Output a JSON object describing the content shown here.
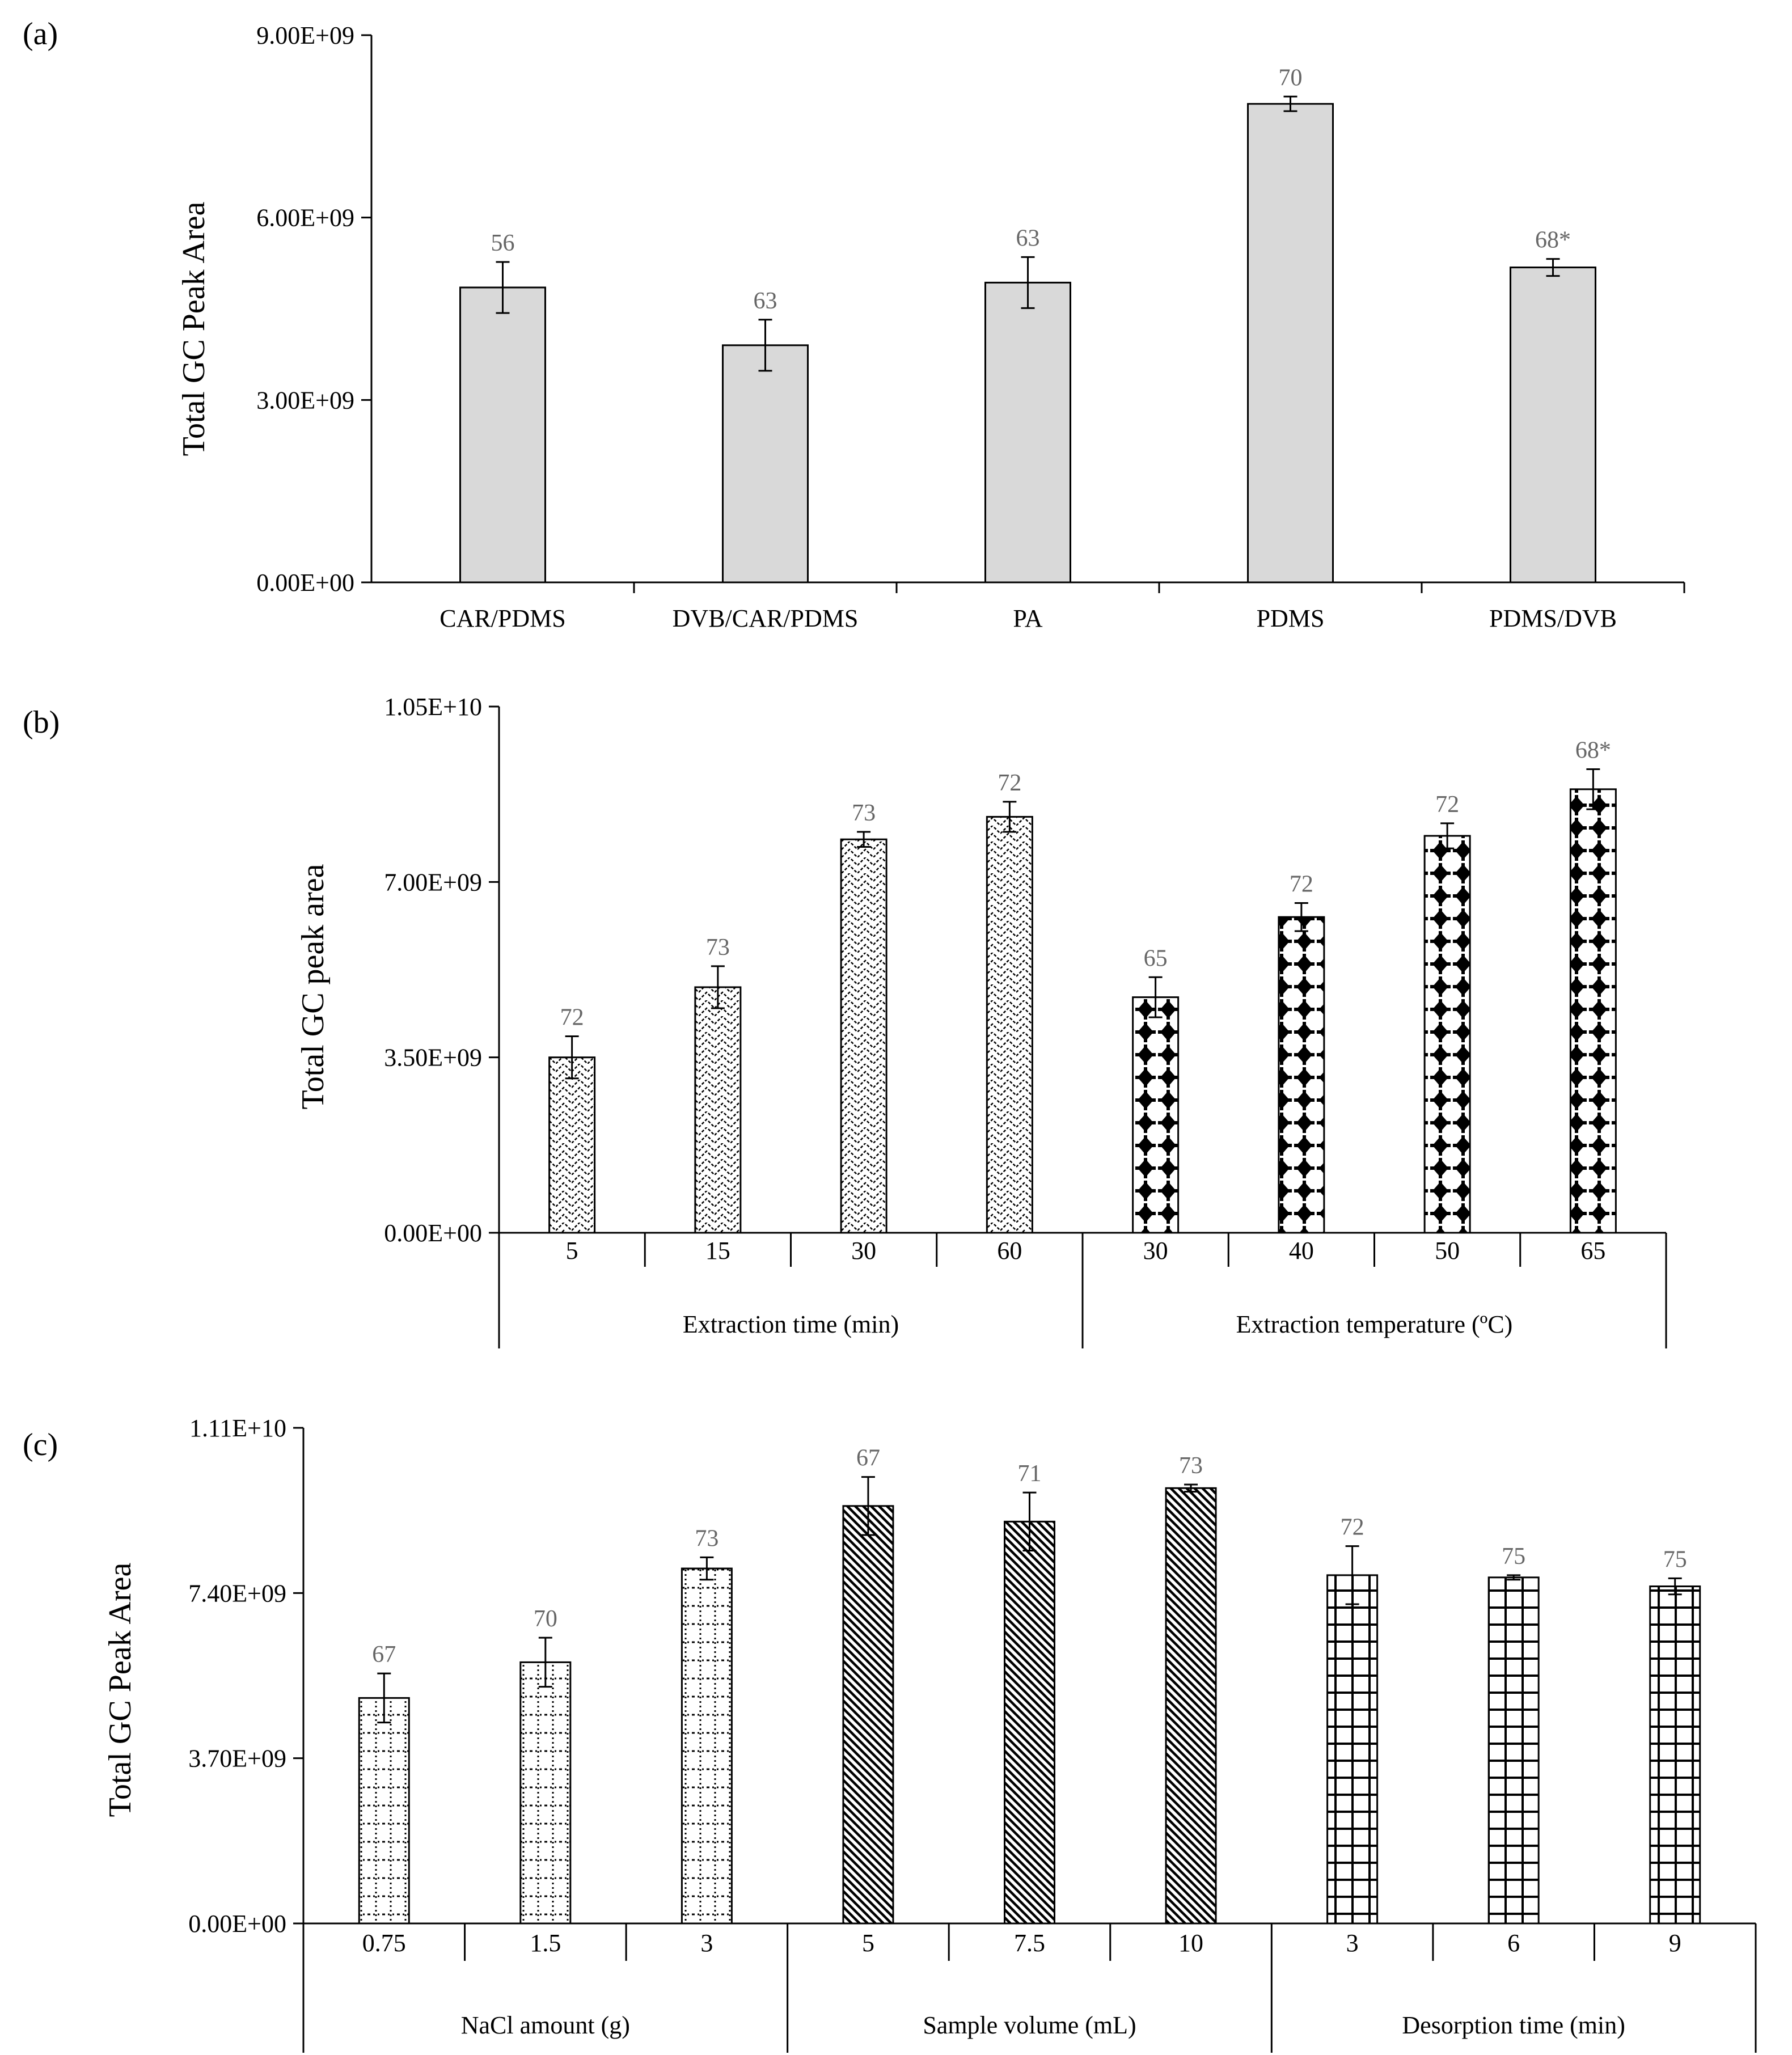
{
  "chart_data": [
    {
      "type": "bar",
      "panel": "(a)",
      "ylabel": "Total  GC  Peak  Area",
      "ylim": [
        0,
        9000000000
      ],
      "yticks": [
        0,
        3000000000,
        6000000000,
        9000000000
      ],
      "ytick_labels": [
        "0.00E+00",
        "3.00E+09",
        "6.00E+09",
        "9.00E+09"
      ],
      "categories": [
        "CAR/PDMS",
        "DVB/CAR/PDMS",
        "PA",
        "PDMS",
        "PDMS/DVB"
      ],
      "values": [
        4850000000,
        3900000000,
        4930000000,
        7870000000,
        5180000000
      ],
      "errors": [
        420000000,
        420000000,
        420000000,
        120000000,
        140000000
      ],
      "labels": [
        "56",
        "63",
        "63",
        "70",
        "68*"
      ],
      "fill": "#d9d9d9",
      "groups": []
    },
    {
      "type": "bar",
      "panel": "(b)",
      "ylabel": "Total  GC  peak  area",
      "ylim": [
        0,
        10500000000
      ],
      "yticks": [
        0,
        3500000000,
        7000000000,
        10500000000
      ],
      "ytick_labels": [
        "0.00E+00",
        "3.50E+09",
        "7.00E+09",
        "1.05E+10"
      ],
      "categories": [
        "5",
        "15",
        "30",
        "60",
        "30",
        "40",
        "50",
        "65"
      ],
      "values": [
        3500000000,
        4900000000,
        7850000000,
        8300000000,
        4700000000,
        6300000000,
        7920000000,
        8850000000
      ],
      "errors": [
        420000000,
        420000000,
        150000000,
        300000000,
        400000000,
        280000000,
        250000000,
        400000000
      ],
      "labels": [
        "72",
        "73",
        "73",
        "72",
        "65",
        "72",
        "72",
        "68*"
      ],
      "groups": [
        {
          "label": "Extraction time (min)",
          "start": 0,
          "end": 3,
          "pattern": "herring"
        },
        {
          "label": "Extraction temperature (ºC)",
          "start": 4,
          "end": 7,
          "pattern": "diamond"
        }
      ]
    },
    {
      "type": "bar",
      "panel": "(c)",
      "ylabel": "Total  GC  Peak  Area",
      "ylim": [
        0,
        11100000000
      ],
      "yticks": [
        0,
        3700000000,
        7400000000,
        11100000000
      ],
      "ytick_labels": [
        "0.00E+00",
        "3.70E+09",
        "7.40E+09",
        "1.11E+10"
      ],
      "categories": [
        "0.75",
        "1.5",
        "3",
        "5",
        "7.5",
        "10",
        "3",
        "6",
        "9"
      ],
      "values": [
        5050000000,
        5850000000,
        7950000000,
        9350000000,
        9000000000,
        9750000000,
        7800000000,
        7750000000,
        7550000000
      ],
      "errors": [
        550000000,
        550000000,
        250000000,
        650000000,
        650000000,
        80000000,
        650000000,
        50000000,
        180000000
      ],
      "labels": [
        "67",
        "70",
        "73",
        "67",
        "71",
        "73",
        "72",
        "75",
        "75"
      ],
      "groups": [
        {
          "label": "NaCl amount (g)",
          "start": 0,
          "end": 2,
          "pattern": "dots"
        },
        {
          "label": "Sample volume (mL)",
          "start": 3,
          "end": 5,
          "pattern": "diag"
        },
        {
          "label": "Desorption time (min)",
          "start": 6,
          "end": 8,
          "pattern": "grid"
        }
      ]
    }
  ]
}
